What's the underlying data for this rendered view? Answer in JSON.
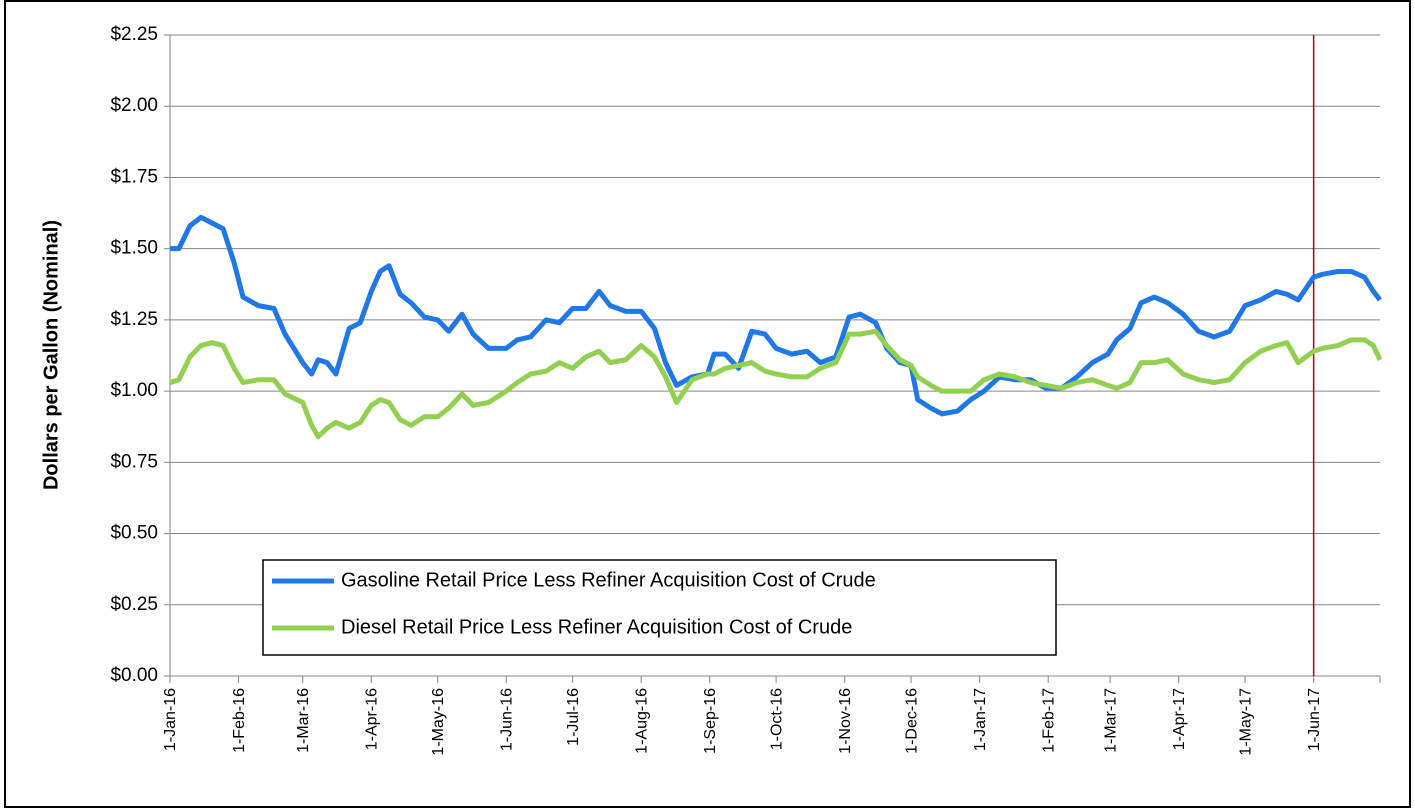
{
  "chart_data": {
    "type": "line",
    "ylabel": "Dollars per Gallon (Nominal)",
    "x": [
      "2016-01-01",
      "2016-01-05",
      "2016-01-10",
      "2016-01-15",
      "2016-01-20",
      "2016-01-25",
      "2016-01-30",
      "2016-02-03",
      "2016-02-10",
      "2016-02-17",
      "2016-02-22",
      "2016-03-01",
      "2016-03-05",
      "2016-03-08",
      "2016-03-12",
      "2016-03-16",
      "2016-03-22",
      "2016-03-27",
      "2016-04-01",
      "2016-04-05",
      "2016-04-09",
      "2016-04-14",
      "2016-04-19",
      "2016-04-25",
      "2016-05-01",
      "2016-05-06",
      "2016-05-12",
      "2016-05-17",
      "2016-05-24",
      "2016-06-01",
      "2016-06-06",
      "2016-06-12",
      "2016-06-19",
      "2016-06-25",
      "2016-07-01",
      "2016-07-07",
      "2016-07-13",
      "2016-07-18",
      "2016-07-25",
      "2016-08-01",
      "2016-08-07",
      "2016-08-12",
      "2016-08-17",
      "2016-08-24",
      "2016-08-31",
      "2016-09-03",
      "2016-09-08",
      "2016-09-14",
      "2016-09-20",
      "2016-09-26",
      "2016-10-01",
      "2016-10-08",
      "2016-10-15",
      "2016-10-21",
      "2016-10-28",
      "2016-11-03",
      "2016-11-08",
      "2016-11-15",
      "2016-11-20",
      "2016-11-26",
      "2016-12-01",
      "2016-12-04",
      "2016-12-10",
      "2016-12-15",
      "2016-12-22",
      "2016-12-28",
      "2017-01-03",
      "2017-01-10",
      "2017-01-17",
      "2017-01-24",
      "2017-01-31",
      "2017-02-07",
      "2017-02-14",
      "2017-02-21",
      "2017-02-28",
      "2017-03-04",
      "2017-03-10",
      "2017-03-15",
      "2017-03-21",
      "2017-03-27",
      "2017-04-03",
      "2017-04-10",
      "2017-04-17",
      "2017-04-24",
      "2017-05-01",
      "2017-05-08",
      "2017-05-15",
      "2017-05-20",
      "2017-05-25",
      "2017-06-01",
      "2017-06-05",
      "2017-06-12",
      "2017-06-18",
      "2017-06-24",
      "2017-06-28",
      "2017-07-01"
    ],
    "series": [
      {
        "name": "Gasoline Retail Price Less Refiner Acquisition Cost of Crude",
        "color": "#1f77e8",
        "values": [
          1.5,
          1.5,
          1.58,
          1.61,
          1.59,
          1.57,
          1.45,
          1.33,
          1.3,
          1.29,
          1.2,
          1.1,
          1.06,
          1.11,
          1.1,
          1.06,
          1.22,
          1.24,
          1.35,
          1.42,
          1.44,
          1.34,
          1.31,
          1.26,
          1.25,
          1.21,
          1.27,
          1.2,
          1.15,
          1.15,
          1.18,
          1.19,
          1.25,
          1.24,
          1.29,
          1.29,
          1.35,
          1.3,
          1.28,
          1.28,
          1.22,
          1.1,
          1.02,
          1.05,
          1.06,
          1.13,
          1.13,
          1.08,
          1.21,
          1.2,
          1.15,
          1.13,
          1.14,
          1.1,
          1.12,
          1.26,
          1.27,
          1.24,
          1.15,
          1.1,
          1.09,
          0.97,
          0.94,
          0.92,
          0.93,
          0.97,
          1.0,
          1.05,
          1.04,
          1.04,
          1.01,
          1.01,
          1.05,
          1.1,
          1.13,
          1.18,
          1.22,
          1.31,
          1.33,
          1.31,
          1.27,
          1.21,
          1.19,
          1.21,
          1.3,
          1.32,
          1.35,
          1.34,
          1.32,
          1.4,
          1.41,
          1.42,
          1.42,
          1.4,
          1.35,
          1.32
        ]
      },
      {
        "name": "Diesel Retail Price Less Refiner Acquisition Cost of Crude",
        "color": "#92d050",
        "values": [
          1.03,
          1.04,
          1.12,
          1.16,
          1.17,
          1.16,
          1.08,
          1.03,
          1.04,
          1.04,
          0.99,
          0.96,
          0.88,
          0.84,
          0.87,
          0.89,
          0.87,
          0.89,
          0.95,
          0.97,
          0.96,
          0.9,
          0.88,
          0.91,
          0.91,
          0.94,
          0.99,
          0.95,
          0.96,
          1.0,
          1.03,
          1.06,
          1.07,
          1.1,
          1.08,
          1.12,
          1.14,
          1.1,
          1.11,
          1.16,
          1.12,
          1.05,
          0.96,
          1.04,
          1.06,
          1.06,
          1.08,
          1.09,
          1.1,
          1.07,
          1.06,
          1.05,
          1.05,
          1.08,
          1.1,
          1.2,
          1.2,
          1.21,
          1.16,
          1.11,
          1.09,
          1.05,
          1.02,
          1.0,
          1.0,
          1.0,
          1.04,
          1.06,
          1.05,
          1.03,
          1.02,
          1.01,
          1.03,
          1.04,
          1.02,
          1.01,
          1.03,
          1.1,
          1.1,
          1.11,
          1.06,
          1.04,
          1.03,
          1.04,
          1.1,
          1.14,
          1.16,
          1.17,
          1.1,
          1.14,
          1.15,
          1.16,
          1.18,
          1.18,
          1.16,
          1.11
        ]
      }
    ],
    "xlim": [
      "2016-01-01",
      "2017-07-01"
    ],
    "xticks": [
      {
        "value": "2016-01-01",
        "label": "1-Jan-16"
      },
      {
        "value": "2016-02-01",
        "label": "1-Feb-16"
      },
      {
        "value": "2016-03-01",
        "label": "1-Mar-16"
      },
      {
        "value": "2016-04-01",
        "label": "1-Apr-16"
      },
      {
        "value": "2016-05-01",
        "label": "1-May-16"
      },
      {
        "value": "2016-06-01",
        "label": "1-Jun-16"
      },
      {
        "value": "2016-07-01",
        "label": "1-Jul-16"
      },
      {
        "value": "2016-08-01",
        "label": "1-Aug-16"
      },
      {
        "value": "2016-09-01",
        "label": "1-Sep-16"
      },
      {
        "value": "2016-10-01",
        "label": "1-Oct-16"
      },
      {
        "value": "2016-11-01",
        "label": "1-Nov-16"
      },
      {
        "value": "2016-12-01",
        "label": "1-Dec-16"
      },
      {
        "value": "2017-01-01",
        "label": "1-Jan-17"
      },
      {
        "value": "2017-02-01",
        "label": "1-Feb-17"
      },
      {
        "value": "2017-03-01",
        "label": "1-Mar-17"
      },
      {
        "value": "2017-04-01",
        "label": "1-Apr-17"
      },
      {
        "value": "2017-05-01",
        "label": "1-May-17"
      },
      {
        "value": "2017-06-01",
        "label": "1-Jun-17"
      }
    ],
    "ylim": [
      0,
      2.25
    ],
    "yticks": [
      {
        "value": 0,
        "label": "$0.00"
      },
      {
        "value": 0.25,
        "label": "$0.25"
      },
      {
        "value": 0.5,
        "label": "$0.50"
      },
      {
        "value": 0.75,
        "label": "$0.75"
      },
      {
        "value": 1,
        "label": "$1.00"
      },
      {
        "value": 1.25,
        "label": "$1.25"
      },
      {
        "value": 1.5,
        "label": "$1.50"
      },
      {
        "value": 1.75,
        "label": "$1.75"
      },
      {
        "value": 2,
        "label": "$2.00"
      },
      {
        "value": 2.25,
        "label": "$2.25"
      }
    ],
    "grid": true,
    "legend": "lower-left",
    "reference_line": {
      "x": "2017-06-01",
      "color": "#c00000"
    }
  }
}
